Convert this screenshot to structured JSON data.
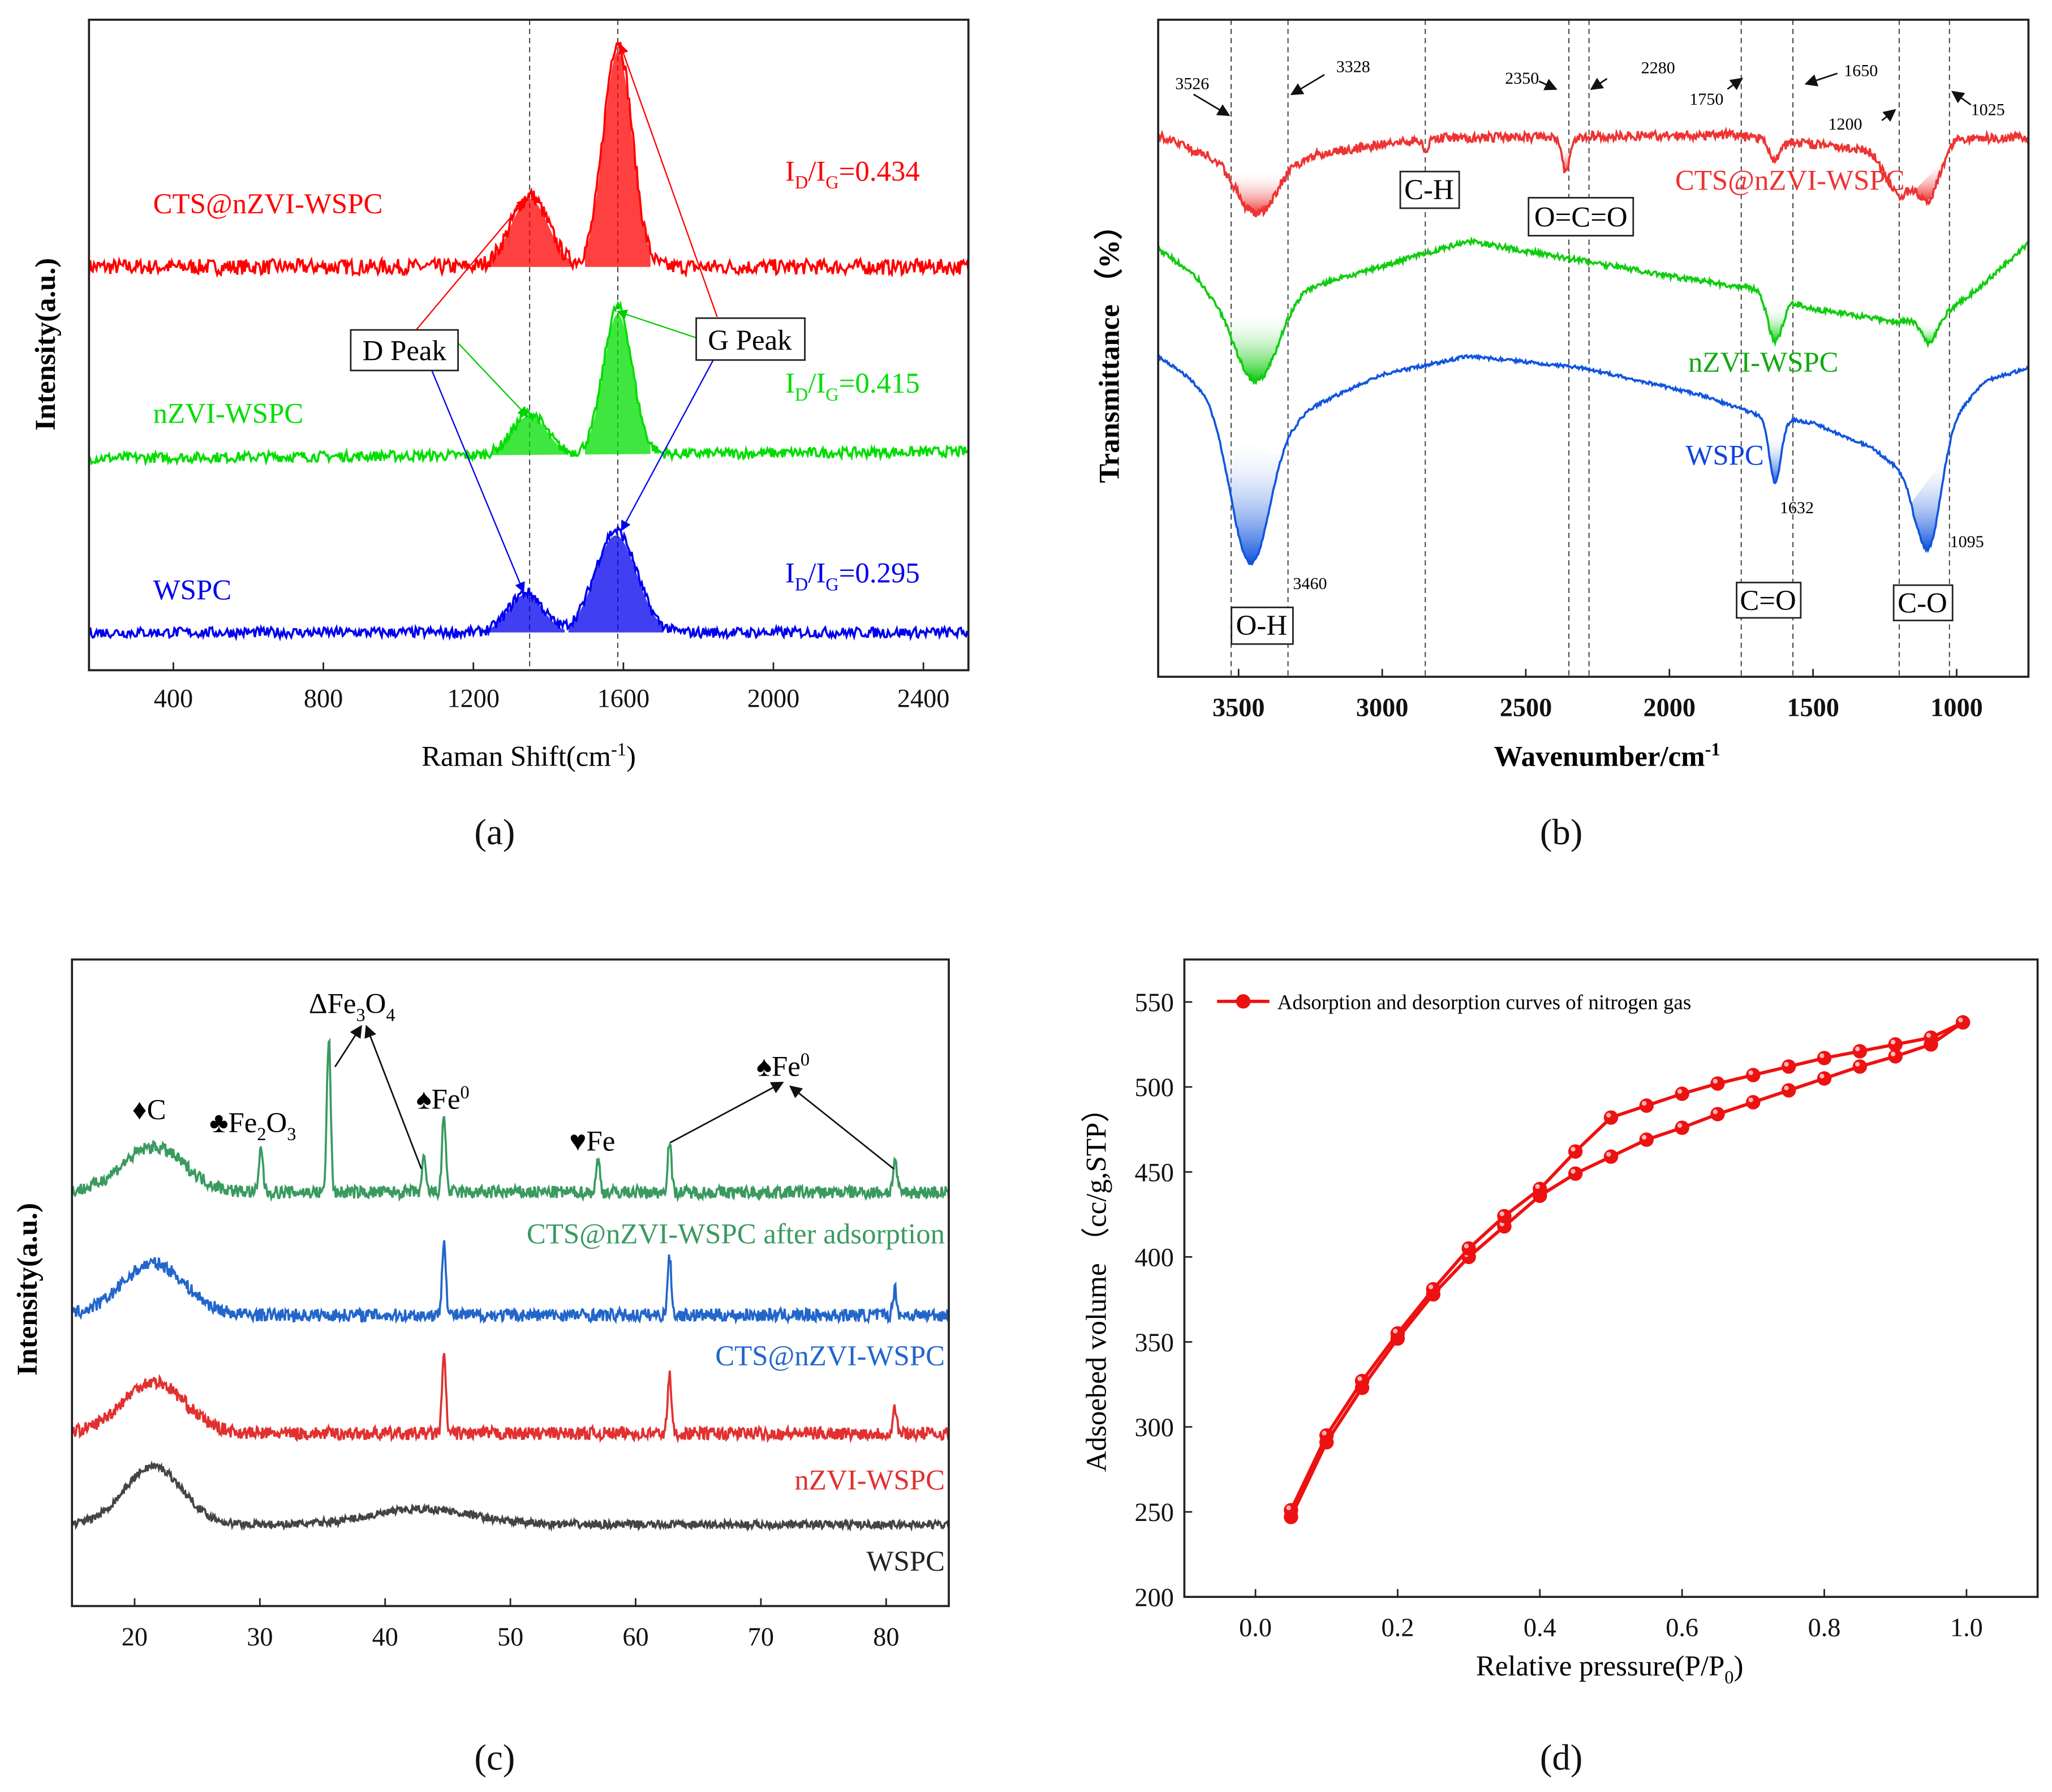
{
  "chart_data": [
    {
      "id": "a",
      "type": "line",
      "panel_label": "(a)",
      "xlabel": "Raman Shift(cm",
      "xlabel_sup": "-1",
      "xlabel_end": ")",
      "ylabel": "Intensity(a.u.)",
      "xlim": [
        175,
        2520
      ],
      "ylim": [
        0,
        100
      ],
      "xticks": [
        400,
        800,
        1200,
        1600,
        2000,
        2400
      ],
      "reference_lines": [
        1350,
        1585
      ],
      "series": [
        {
          "name": "CTS@nZVI-WSPC",
          "color": "#ff0000",
          "baseline": [
            [
              175,
              62
            ],
            [
              2520,
              62
            ]
          ],
          "noise": 1.2,
          "peaks": [
            {
              "center": 1350,
              "height": 11,
              "sigma": 50
            },
            {
              "center": 1585,
              "height": 34.8,
              "sigma": 38
            }
          ],
          "ratio": "0.434"
        },
        {
          "name": "nZVI-WSPC",
          "color": "#00dd00",
          "baseline": [
            [
              175,
              32.6
            ],
            [
              2520,
              33.6
            ]
          ],
          "noise": 0.8,
          "peaks": [
            {
              "center": 1350,
              "height": 6.4,
              "sigma": 45
            },
            {
              "center": 1585,
              "height": 22.7,
              "sigma": 38
            }
          ],
          "ratio": "0.415"
        },
        {
          "name": "WSPC",
          "color": "#0000ee",
          "baseline": [
            [
              175,
              5.8
            ],
            [
              2520,
              5.8
            ]
          ],
          "noise": 0.8,
          "peaks": [
            {
              "center": 1340,
              "height": 6.2,
              "sigma": 45
            },
            {
              "center": 1580,
              "height": 15.7,
              "sigma": 55
            }
          ],
          "ratio": "0.295"
        }
      ],
      "ratio_prefix": "I",
      "ratio_sub_d": "D",
      "ratio_sub_g": "G",
      "ratio_mid": "/I",
      "ratio_eq": "=",
      "annotations": {
        "d_peak": "D Peak",
        "g_peak": "G Peak"
      }
    },
    {
      "id": "b",
      "type": "line",
      "panel_label": "(b)",
      "xlabel": "Wavenumber/cm",
      "xlabel_sup": "-1",
      "ylabel": "Transmittance （%）",
      "xlim": [
        3780,
        750
      ],
      "ylim": [
        0,
        100
      ],
      "xticks": [
        3500,
        3000,
        2500,
        2000,
        1500,
        1000
      ],
      "reference_lines": [
        3526,
        3328,
        2850,
        2350,
        2280,
        1750,
        1570,
        1200,
        1025
      ],
      "series": [
        {
          "name": "CTS@nZVI-WSPC",
          "color": "#ee3333",
          "noise": 0.7,
          "baseline": [
            [
              3780,
              82.5
            ],
            [
              3650,
              80
            ],
            [
              3300,
              79
            ],
            [
              3000,
              81
            ],
            [
              2800,
              82
            ],
            [
              1800,
              82.5
            ],
            [
              1300,
              80
            ],
            [
              1200,
              73
            ],
            [
              1000,
              82
            ],
            [
              750,
              82
            ]
          ],
          "dips": [
            {
              "center": 3440,
              "depth": 9,
              "sigma": 70
            },
            {
              "center": 2360,
              "depth": 5.4,
              "sigma": 14
            },
            {
              "center": 2850,
              "depth": 1.5,
              "sigma": 10
            },
            {
              "center": 1632,
              "depth": 3,
              "sigma": 20
            },
            {
              "center": 1095,
              "depth": 5,
              "sigma": 35
            }
          ]
        },
        {
          "name": "nZVI-WSPC",
          "color": "#11cc11",
          "noise": 0.4,
          "baseline": [
            [
              3780,
              65
            ],
            [
              3600,
              60
            ],
            [
              3200,
              60
            ],
            [
              2700,
              66.3
            ],
            [
              2000,
              61
            ],
            [
              1700,
              59
            ],
            [
              1500,
              56
            ],
            [
              1200,
              54
            ],
            [
              1050,
              55
            ],
            [
              900,
              60
            ],
            [
              750,
              66
            ]
          ],
          "dips": [
            {
              "center": 3440,
              "depth": 15,
              "sigma": 80
            },
            {
              "center": 1632,
              "depth": 7,
              "sigma": 25
            },
            {
              "center": 1095,
              "depth": 4,
              "sigma": 25
            }
          ]
        },
        {
          "name": "WSPC",
          "color": "#1155dd",
          "noise": 0.25,
          "baseline": [
            [
              3780,
              48.8
            ],
            [
              3650,
              45
            ],
            [
              3300,
              40
            ],
            [
              3000,
              46
            ],
            [
              2700,
              48.8
            ],
            [
              2300,
              47
            ],
            [
              1900,
              43
            ],
            [
              1700,
              40
            ],
            [
              1500,
              38.6
            ],
            [
              1300,
              35
            ],
            [
              1150,
              30
            ],
            [
              1000,
              40
            ],
            [
              900,
              45
            ],
            [
              750,
              47
            ]
          ],
          "dips": [
            {
              "center": 3460,
              "depth": 25,
              "sigma": 70
            },
            {
              "center": 1632,
              "depth": 10,
              "sigma": 20
            },
            {
              "center": 1095,
              "depth": 14,
              "sigma": 40
            }
          ]
        }
      ],
      "peak_labels": [
        "3526",
        "3328",
        "2350",
        "2280",
        "1750",
        "1650",
        "1200",
        "1025"
      ],
      "point_labels": [
        "3460",
        "1632",
        "1095"
      ],
      "group_labels": [
        "C-H",
        "O=C=O",
        "O-H",
        "C=O",
        "C-O"
      ]
    },
    {
      "id": "c",
      "type": "line",
      "panel_label": "(c)",
      "xlabel": "",
      "ylabel": "Intensity(a.u.)",
      "xlim": [
        15,
        85
      ],
      "ylim": [
        0,
        100
      ],
      "xticks": [
        20,
        30,
        40,
        50,
        60,
        70,
        80
      ],
      "series": [
        {
          "name": "CTS@nZVI-WSPC after adsorption",
          "color": "#3a9a60",
          "baseline": [
            [
              15,
              64
            ],
            [
              85,
              64
            ]
          ],
          "noise": 1.0,
          "peaks": [
            {
              "center": 21.5,
              "height": 7,
              "sigma": 2.5
            },
            {
              "center": 30.1,
              "height": 7,
              "sigma": 0.15
            },
            {
              "center": 35.5,
              "height": 24,
              "sigma": 0.15
            },
            {
              "center": 43.1,
              "height": 5,
              "sigma": 0.15
            },
            {
              "center": 44.7,
              "height": 12,
              "sigma": 0.15
            },
            {
              "center": 57,
              "height": 5,
              "sigma": 0.15
            },
            {
              "center": 62.7,
              "height": 8,
              "sigma": 0.15
            },
            {
              "center": 80.7,
              "height": 5,
              "sigma": 0.15
            }
          ]
        },
        {
          "name": "CTS@nZVI-WSPC",
          "color": "#2266cc",
          "baseline": [
            [
              15,
              45
            ],
            [
              85,
              45
            ]
          ],
          "noise": 1.0,
          "peaks": [
            {
              "center": 21.5,
              "height": 8,
              "sigma": 2.5
            },
            {
              "center": 44.7,
              "height": 12,
              "sigma": 0.15
            },
            {
              "center": 62.7,
              "height": 9,
              "sigma": 0.15
            },
            {
              "center": 80.7,
              "height": 4,
              "sigma": 0.15
            }
          ]
        },
        {
          "name": "nZVI-WSPC",
          "color": "#e23030",
          "baseline": [
            [
              15,
              26.7
            ],
            [
              85,
              26.7
            ]
          ],
          "noise": 1.0,
          "peaks": [
            {
              "center": 21.5,
              "height": 8,
              "sigma": 2.5
            },
            {
              "center": 44.7,
              "height": 12,
              "sigma": 0.15
            },
            {
              "center": 62.7,
              "height": 9,
              "sigma": 0.15
            },
            {
              "center": 80.7,
              "height": 4,
              "sigma": 0.15
            }
          ]
        },
        {
          "name": "WSPC",
          "color": "#444444",
          "baseline": [
            [
              15,
              12.6
            ],
            [
              85,
              12.6
            ]
          ],
          "noise": 0.6,
          "peaks": [
            {
              "center": 21.5,
              "height": 9,
              "sigma": 2.3
            },
            {
              "center": 43,
              "height": 2.4,
              "sigma": 4
            }
          ]
        }
      ],
      "phase_labels": {
        "c": "♦C",
        "fe2o3": "♣Fe",
        "fe2o3_sub1": "2",
        "fe2o3_mid": "O",
        "fe2o3_sub2": "3",
        "fe3o4": "ΔFe",
        "fe3o4_sub1": "3",
        "fe3o4_mid": "O",
        "fe3o4_sub2": "4",
        "fe0_a": "♠Fe",
        "fe0_a_sup": "0",
        "fe": "♥Fe",
        "fe0_b": "♠Fe",
        "fe0_b_sup": "0"
      }
    },
    {
      "id": "d",
      "type": "line",
      "panel_label": "(d)",
      "xlabel": "Relative pressure(P/P",
      "xlabel_sub": "0",
      "xlabel_end": ")",
      "ylabel": "Adsoebed volume （cc/g,STP）",
      "xlim": [
        -0.1,
        1.1
      ],
      "ylim": [
        200,
        575
      ],
      "xticks": [
        "0.0",
        "0.2",
        "0.4",
        "0.6",
        "0.8",
        "1.0"
      ],
      "yticks": [
        200,
        250,
        300,
        350,
        400,
        450,
        500,
        550
      ],
      "legend": "Adsorption and desorption curves of nitrogen gas",
      "legend_position": "top-left",
      "color": "#ee1111",
      "series": [
        {
          "name": "adsorption",
          "x": [
            0.05,
            0.1,
            0.15,
            0.2,
            0.25,
            0.3,
            0.35,
            0.4,
            0.45,
            0.5,
            0.55,
            0.6,
            0.65,
            0.7,
            0.75,
            0.8,
            0.85,
            0.9,
            0.95,
            0.995
          ],
          "y": [
            247,
            291,
            323,
            352,
            378,
            400,
            418,
            436,
            449,
            459,
            469,
            476,
            484,
            491,
            498,
            505,
            512,
            518,
            525,
            538
          ]
        },
        {
          "name": "desorption",
          "x": [
            0.995,
            0.95,
            0.9,
            0.85,
            0.8,
            0.75,
            0.7,
            0.65,
            0.6,
            0.55,
            0.5,
            0.45,
            0.4,
            0.35,
            0.3,
            0.25,
            0.2,
            0.15,
            0.1,
            0.05
          ],
          "y": [
            538,
            529,
            525,
            521,
            517,
            512,
            507,
            502,
            496,
            489,
            482,
            462,
            440,
            424,
            405,
            381,
            355,
            327,
            295,
            251
          ]
        }
      ]
    }
  ]
}
